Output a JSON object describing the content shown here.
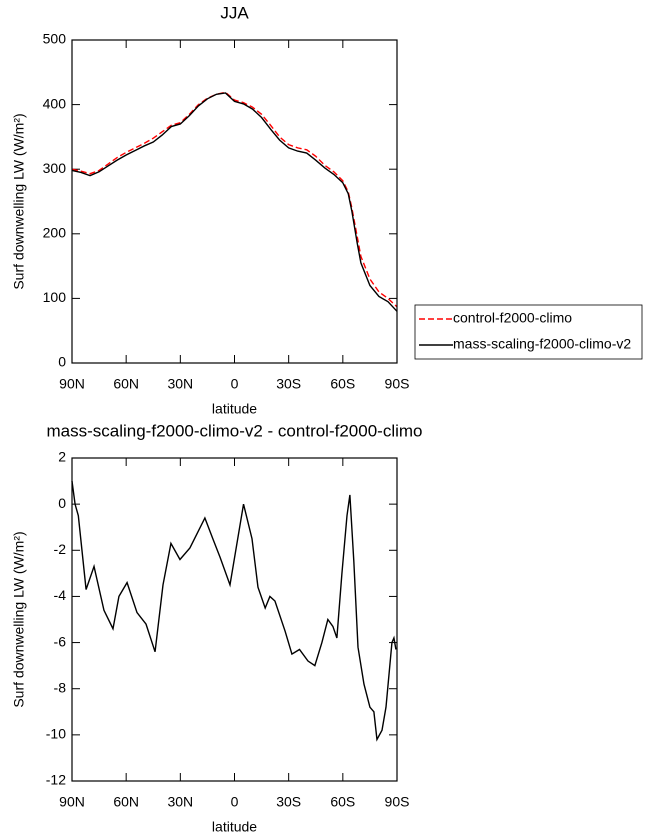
{
  "chart_data": [
    {
      "type": "line",
      "title": "JJA",
      "xlabel": "latitude",
      "ylabel": "Surf downwelling LW (W/m²)",
      "x": [
        90,
        85,
        80,
        75,
        70,
        65,
        60,
        55,
        50,
        45,
        40,
        35,
        30,
        25,
        20,
        15,
        10,
        5,
        0,
        -5,
        -10,
        -15,
        -20,
        -25,
        -30,
        -35,
        -40,
        -45,
        -50,
        -55,
        -60,
        -63,
        -65,
        -68,
        -70,
        -75,
        -80,
        -85,
        -90
      ],
      "series": [
        {
          "name": "control-f2000-climo",
          "color": "#ff0000",
          "style": "dashed",
          "values": [
            300,
            297,
            293,
            298,
            308,
            318,
            326,
            333,
            340,
            348,
            358,
            368,
            372,
            385,
            400,
            410,
            416,
            419,
            407,
            403,
            396,
            385,
            368,
            350,
            338,
            333,
            330,
            320,
            306,
            296,
            282,
            265,
            240,
            195,
            165,
            130,
            110,
            100,
            87
          ]
        },
        {
          "name": "mass-scaling-f2000-climo-v2",
          "color": "#000000",
          "style": "solid",
          "values": [
            298,
            295,
            290,
            296,
            305,
            314,
            322,
            329,
            336,
            342,
            353,
            366,
            370,
            383,
            398,
            409,
            416,
            418,
            405,
            401,
            393,
            380,
            362,
            345,
            333,
            328,
            325,
            314,
            302,
            292,
            279,
            262,
            235,
            185,
            155,
            120,
            103,
            95,
            80
          ]
        }
      ],
      "xlim": [
        90,
        -90
      ],
      "xticks": [
        {
          "value": 90,
          "label": "90N"
        },
        {
          "value": 60,
          "label": "60N"
        },
        {
          "value": 30,
          "label": "30N"
        },
        0,
        {
          "value": -30,
          "label": "30S"
        },
        {
          "value": -60,
          "label": "60S"
        },
        {
          "value": -90,
          "label": "90S"
        }
      ],
      "ylim": [
        0,
        500
      ],
      "yticks": [
        0,
        100,
        200,
        300,
        400,
        500
      ],
      "legend": "right"
    },
    {
      "type": "line",
      "title": "mass-scaling-f2000-climo-v2 - control-f2000-climo",
      "xlabel": "latitude",
      "ylabel": "Surf downwelling LW (W/m²)",
      "x": [
        90,
        88.3,
        86.5,
        82.2,
        77.8,
        72.3,
        67.3,
        64,
        59.5,
        54,
        49,
        44,
        39.6,
        35.2,
        30.2,
        24.7,
        16.4,
        12,
        8,
        2.5,
        -5,
        -9.7,
        -13,
        -17,
        -19.6,
        -22.4,
        -28,
        -31.8,
        -36,
        -40.7,
        -44.5,
        -48.4,
        -51.7,
        -54.5,
        -56.7,
        -59.5,
        -62.3,
        -63.9,
        -66.1,
        -68.4,
        -71.7,
        -75,
        -77.2,
        -78.9,
        -81.7,
        -83.9,
        -87.2,
        -88.3,
        -89.4
      ],
      "series": [
        {
          "name": "difference",
          "color": "#000000",
          "style": "solid",
          "values": [
            1.0,
            0.0,
            -0.5,
            -3.7,
            -2.7,
            -4.6,
            -5.4,
            -4.0,
            -3.4,
            -4.7,
            -5.2,
            -6.4,
            -3.5,
            -1.7,
            -2.4,
            -1.9,
            -0.6,
            -1.5,
            -2.3,
            -3.5,
            0.0,
            -1.5,
            -3.6,
            -4.5,
            -4.0,
            -4.2,
            -5.5,
            -6.5,
            -6.3,
            -6.8,
            -7.0,
            -6.0,
            -5.0,
            -5.3,
            -5.8,
            -3.0,
            -0.5,
            0.4,
            -2.5,
            -6.2,
            -7.8,
            -8.8,
            -9.0,
            -10.2,
            -9.8,
            -8.8,
            -6.0,
            -5.8,
            -6.3
          ]
        }
      ],
      "xlim": [
        90,
        -90
      ],
      "xticks": [
        {
          "value": 90,
          "label": "90N"
        },
        {
          "value": 60,
          "label": "60N"
        },
        {
          "value": 30,
          "label": "30N"
        },
        0,
        {
          "value": -30,
          "label": "30S"
        },
        {
          "value": -60,
          "label": "60S"
        },
        {
          "value": -90,
          "label": "90S"
        }
      ],
      "ylim": [
        -12,
        2
      ],
      "yticks": [
        -12,
        -10,
        -8,
        -6,
        -4,
        -2,
        0,
        2
      ]
    }
  ]
}
